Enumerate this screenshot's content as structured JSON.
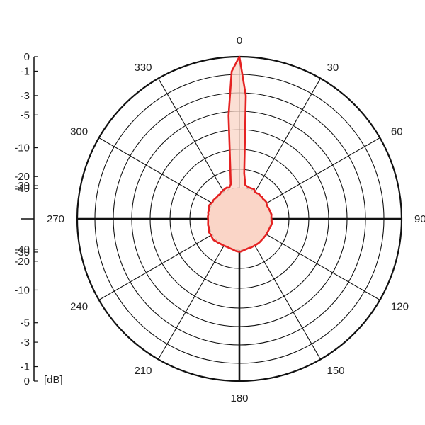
{
  "chart_data": {
    "type": "polar-line",
    "unit_label": "[dB]",
    "angle_labels": [
      "0",
      "30",
      "60",
      "90",
      "120",
      "150",
      "180",
      "210",
      "240",
      "270",
      "300",
      "330"
    ],
    "angles_deg": [
      0,
      30,
      60,
      90,
      120,
      150,
      180,
      210,
      240,
      270,
      300,
      330
    ],
    "db_scale_ticks_upper": [
      "0",
      "-1",
      "-3",
      "-5",
      "-10",
      "-20",
      "-30",
      "-40"
    ],
    "db_scale_ticks_lower": [
      "-40",
      "-30",
      "-20",
      "-10",
      "-5",
      "-3",
      "-1",
      "0"
    ],
    "db_scale_values": [
      0,
      -1,
      -3,
      -5,
      -10,
      -20,
      -30,
      -40
    ],
    "grid": true,
    "series": [
      {
        "color": "#e52222",
        "fill": "#f9d4c6",
        "angle_deg": [
          0,
          3,
          6,
          10,
          14,
          18,
          22,
          26,
          30,
          34,
          38,
          42,
          46,
          50,
          54,
          58,
          62,
          66,
          70,
          74,
          78,
          82,
          86,
          90,
          94,
          98,
          102,
          106,
          110,
          114,
          118,
          122,
          126,
          130,
          134,
          138,
          142,
          146,
          150,
          154,
          158,
          162,
          166,
          170,
          174,
          178,
          182,
          186,
          190,
          194,
          198,
          202,
          206,
          210,
          214,
          218,
          222,
          226,
          230,
          234,
          238,
          242,
          246,
          250,
          254,
          258,
          262,
          266,
          270,
          274,
          278,
          282,
          286,
          290,
          294,
          298,
          302,
          306,
          310,
          314,
          318,
          322,
          326,
          330,
          334,
          338,
          342,
          346,
          350,
          354,
          357
        ],
        "db": [
          0,
          -3,
          -18,
          -28,
          -30,
          -31,
          -31,
          -30,
          -36,
          -37,
          -34,
          -36,
          -35,
          -37,
          -35,
          -34,
          -37,
          -38,
          -36,
          -35,
          -34,
          -32,
          -33,
          -33,
          -32,
          -31,
          -32,
          -34,
          -35,
          -36,
          -37,
          -36,
          -38,
          -37,
          -38,
          -37,
          -37,
          -38,
          -38,
          -38,
          -37,
          -38,
          -37,
          -35,
          -33,
          -31,
          -31,
          -32,
          -34,
          -36,
          -37,
          -38,
          -38,
          -37,
          -36,
          -35,
          -33,
          -32,
          -30,
          -30,
          -31,
          -31,
          -30,
          -32,
          -34,
          -33,
          -34,
          -35,
          -35,
          -34,
          -35,
          -33,
          -34,
          -31,
          -30,
          -32,
          -34,
          -33,
          -34,
          -35,
          -34,
          -35,
          -32,
          -31,
          -30,
          -29,
          -31,
          -26,
          -15,
          -5,
          -1
        ]
      }
    ]
  }
}
